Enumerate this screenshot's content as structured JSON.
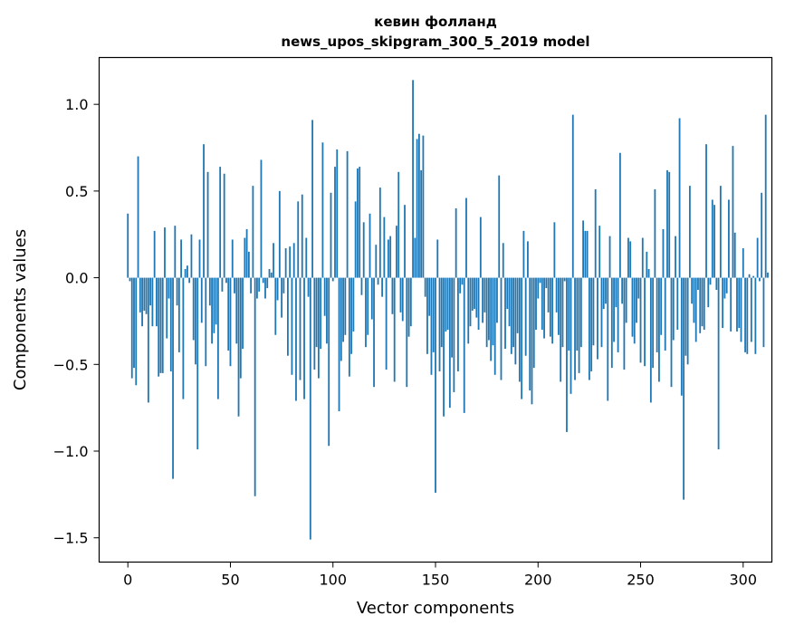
{
  "chart_data": {
    "type": "bar",
    "title_line1": "кевин фолланд",
    "title_line2": "news_upos_skipgram_300_5_2019 model",
    "xlabel": "Vector components",
    "ylabel": "Components values",
    "xlim": [
      -14,
      314
    ],
    "ylim": [
      -1.64,
      1.27
    ],
    "xticks": [
      0,
      50,
      100,
      150,
      200,
      250,
      300
    ],
    "xtick_labels": [
      "0",
      "50",
      "100",
      "150",
      "200",
      "250",
      "300"
    ],
    "yticks": [
      1.0,
      0.5,
      0.0,
      -0.5,
      -1.0,
      -1.5
    ],
    "ytick_labels": [
      "1.0",
      "0.5",
      "0.0",
      "−0.5",
      "−1.0",
      "−1.5"
    ],
    "bar_color": "#1f77b4",
    "values": [
      0.37,
      -0.02,
      -0.58,
      -0.52,
      -0.62,
      0.7,
      -0.2,
      -0.28,
      -0.19,
      -0.21,
      -0.72,
      -0.16,
      -0.28,
      0.27,
      -0.28,
      -0.57,
      -0.55,
      -0.55,
      0.29,
      -0.35,
      -0.12,
      -0.54,
      -1.16,
      0.3,
      -0.16,
      -0.43,
      0.22,
      -0.7,
      0.05,
      0.07,
      -0.03,
      0.25,
      -0.36,
      -0.5,
      -0.99,
      0.22,
      -0.26,
      0.77,
      -0.51,
      0.61,
      -0.16,
      -0.38,
      -0.32,
      -0.27,
      -0.7,
      0.64,
      -0.08,
      0.6,
      -0.03,
      -0.42,
      -0.51,
      0.22,
      -0.09,
      -0.38,
      -0.8,
      -0.58,
      -0.41,
      0.23,
      0.28,
      0.15,
      -0.09,
      0.53,
      -1.26,
      -0.12,
      -0.08,
      0.68,
      -0.03,
      -0.12,
      -0.06,
      0.05,
      0.03,
      0.2,
      -0.33,
      -0.13,
      0.5,
      -0.23,
      -0.09,
      0.17,
      -0.45,
      0.18,
      -0.56,
      0.2,
      -0.71,
      0.44,
      -0.59,
      0.48,
      -0.7,
      0.23,
      -0.11,
      -1.51,
      0.91,
      -0.53,
      -0.4,
      -0.58,
      -0.41,
      0.78,
      -0.22,
      -0.38,
      -0.97,
      0.49,
      -0.02,
      0.64,
      0.74,
      -0.77,
      -0.48,
      -0.37,
      -0.33,
      0.73,
      -0.57,
      -0.44,
      -0.31,
      0.44,
      0.63,
      0.64,
      -0.1,
      0.32,
      -0.4,
      -0.33,
      0.37,
      -0.24,
      -0.63,
      0.19,
      -0.04,
      0.52,
      -0.11,
      0.35,
      -0.53,
      0.22,
      0.24,
      -0.21,
      -0.6,
      0.3,
      0.61,
      -0.2,
      -0.25,
      0.42,
      -0.63,
      -0.34,
      -0.28,
      1.14,
      0.23,
      0.8,
      0.83,
      0.62,
      0.82,
      -0.11,
      -0.44,
      -0.22,
      -0.56,
      -0.43,
      -1.24,
      0.22,
      -0.54,
      -0.4,
      -0.8,
      -0.31,
      -0.3,
      -0.75,
      -0.46,
      -0.66,
      0.4,
      -0.54,
      -0.09,
      -0.04,
      -0.78,
      0.46,
      -0.38,
      -0.28,
      -0.19,
      -0.18,
      -0.23,
      -0.3,
      0.35,
      -0.26,
      -0.2,
      -0.4,
      -0.36,
      -0.48,
      -0.39,
      -0.56,
      -0.26,
      0.59,
      -0.59,
      0.2,
      -0.41,
      -0.18,
      -0.28,
      -0.44,
      -0.4,
      -0.5,
      -0.32,
      -0.6,
      -0.7,
      0.27,
      -0.45,
      0.21,
      -0.65,
      -0.73,
      -0.52,
      -0.3,
      -0.12,
      -0.03,
      -0.3,
      -0.35,
      -0.06,
      -0.2,
      -0.34,
      -0.38,
      0.32,
      -0.2,
      -0.33,
      -0.6,
      -0.4,
      -0.02,
      -0.89,
      -0.42,
      -0.67,
      0.94,
      -0.59,
      -0.42,
      -0.55,
      -0.4,
      0.33,
      0.27,
      0.27,
      -0.59,
      -0.54,
      -0.39,
      0.51,
      -0.47,
      0.3,
      -0.4,
      -0.18,
      -0.15,
      -0.71,
      0.24,
      -0.52,
      -0.37,
      -0.17,
      -0.43,
      0.72,
      -0.15,
      -0.53,
      -0.26,
      0.23,
      0.21,
      -0.34,
      -0.38,
      -0.26,
      -0.12,
      -0.49,
      0.23,
      -0.51,
      0.15,
      0.05,
      -0.72,
      -0.52,
      0.51,
      -0.43,
      -0.6,
      -0.33,
      0.28,
      -0.42,
      0.62,
      0.61,
      -0.63,
      -0.36,
      0.24,
      -0.3,
      0.92,
      -0.68,
      -1.28,
      -0.45,
      -0.5,
      0.53,
      -0.15,
      -0.26,
      -0.37,
      -0.07,
      -0.32,
      -0.28,
      -0.3,
      0.77,
      -0.17,
      -0.04,
      0.45,
      0.42,
      -0.07,
      -0.99,
      0.53,
      -0.29,
      -0.12,
      -0.09,
      0.45,
      -0.31,
      0.76,
      0.26,
      -0.31,
      -0.29,
      -0.37,
      0.17,
      -0.43,
      -0.44,
      0.02,
      -0.37,
      0.01,
      -0.44,
      0.23,
      -0.02,
      0.49,
      -0.4,
      0.94,
      0.03
    ]
  }
}
